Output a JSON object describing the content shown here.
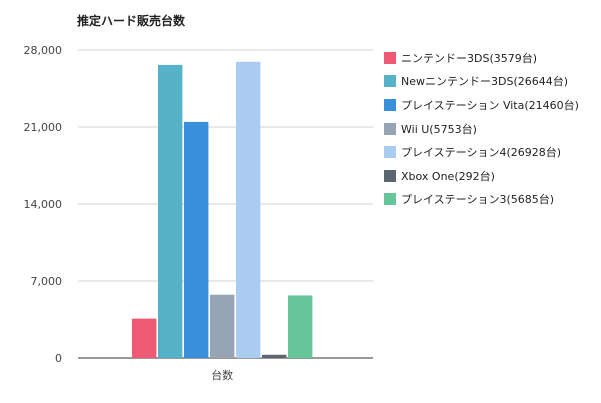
{
  "chart_data": {
    "type": "bar",
    "title": "推定ハード販売台数",
    "categories": [
      "台数"
    ],
    "xlabel": "",
    "ylabel": "",
    "ylim": [
      0,
      28000
    ],
    "yticks": [
      "0",
      "7,000",
      "14,000",
      "21,000",
      "28,000"
    ],
    "ytick_values": [
      0,
      7000,
      14000,
      21000,
      28000
    ],
    "grid": true,
    "legend_position": "right",
    "series": [
      {
        "name": "ニンテンドー3DS(3579台)",
        "values": [
          3579
        ],
        "color": "#ee5a73"
      },
      {
        "name": "Newニンテンドー3DS(26644台)",
        "values": [
          26644
        ],
        "color": "#55b2c9"
      },
      {
        "name": "プレイステーション Vita(21460台)",
        "values": [
          21460
        ],
        "color": "#3a8fdb"
      },
      {
        "name": "Wii U(5753台)",
        "values": [
          5753
        ],
        "color": "#97a4b3"
      },
      {
        "name": "プレイステーション4(26928台)",
        "values": [
          26928
        ],
        "color": "#a9ccf0"
      },
      {
        "name": "Xbox One(292台)",
        "values": [
          292
        ],
        "color": "#5c6670"
      },
      {
        "name": "プレイステーション3(5685台)",
        "values": [
          5685
        ],
        "color": "#66c69a"
      }
    ]
  }
}
